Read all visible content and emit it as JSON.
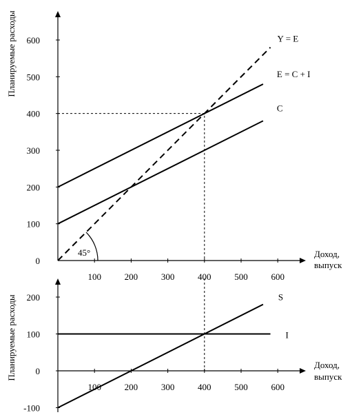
{
  "chart_data": [
    {
      "type": "line",
      "ylabel": "Планируемые расходы",
      "xlabel_lines": [
        "Доход,",
        "выпуск"
      ],
      "origin_label": "0",
      "xticks": [
        100,
        200,
        300,
        400,
        500,
        600
      ],
      "yticks": [
        0,
        100,
        200,
        300,
        400,
        500,
        600
      ],
      "xlim": [
        0,
        660
      ],
      "ylim": [
        0,
        680
      ],
      "angle_label": "45°",
      "guides": [
        {
          "x": 400,
          "y": 400
        }
      ],
      "series": [
        {
          "name": "Y = E",
          "style": "dashed",
          "x": [
            0,
            580
          ],
          "y": [
            0,
            580
          ]
        },
        {
          "name": "E = C + I",
          "style": "solid",
          "x": [
            0,
            560
          ],
          "y": [
            200,
            480
          ]
        },
        {
          "name": "C",
          "style": "solid",
          "x": [
            0,
            560
          ],
          "y": [
            100,
            380
          ]
        }
      ]
    },
    {
      "type": "line",
      "ylabel": "Планируемые расходы",
      "xlabel_lines": [
        "Доход,",
        "выпуск"
      ],
      "xticks": [
        100,
        200,
        300,
        400,
        500,
        600
      ],
      "yticks": [
        -100,
        0,
        100,
        200
      ],
      "xlim": [
        0,
        660
      ],
      "ylim": [
        -110,
        285
      ],
      "series": [
        {
          "name": "S",
          "style": "solid",
          "x": [
            0,
            560
          ],
          "y": [
            -100,
            180
          ]
        },
        {
          "name": "I",
          "style": "solid",
          "x": [
            0,
            580
          ],
          "y": [
            100,
            100
          ]
        }
      ]
    }
  ]
}
